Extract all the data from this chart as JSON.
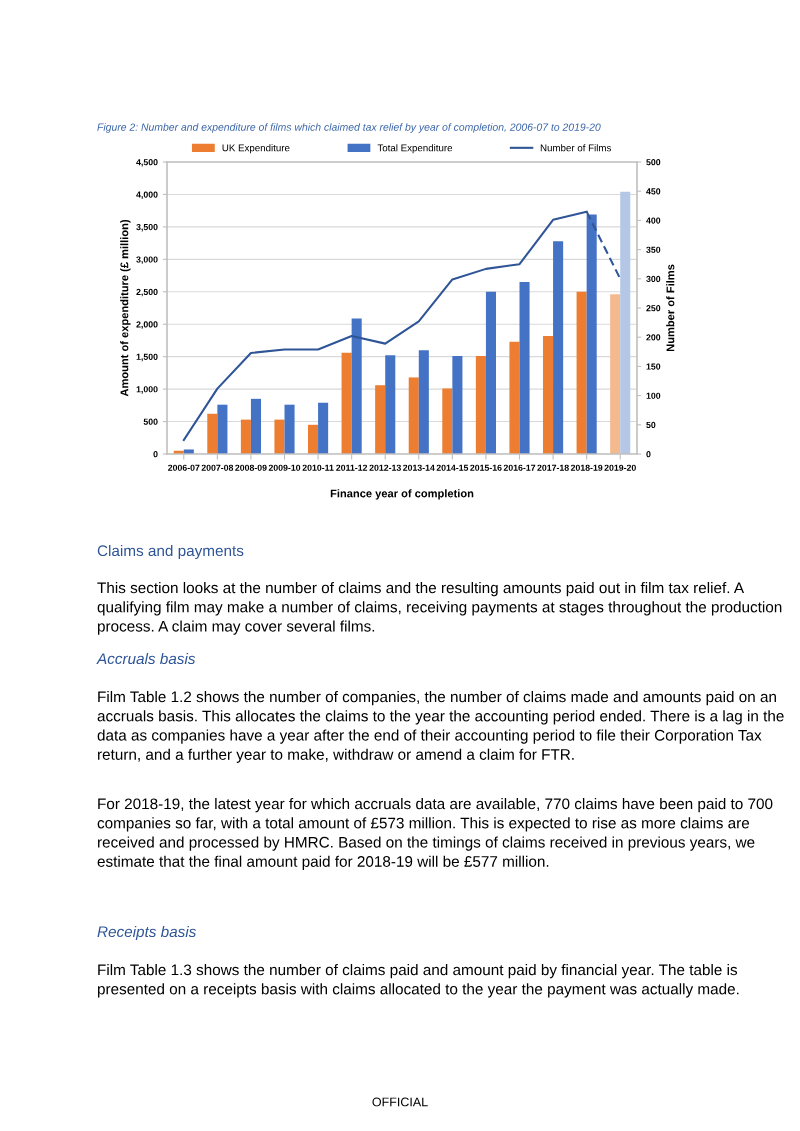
{
  "chart_data": {
    "type": "bar",
    "title": "Figure 2: Number and expenditure of films which claimed tax relief by year of completion, 2006-07 to 2019-20",
    "xlabel": "Finance year of completion",
    "ylabel": "Amount of expenditure (£ million)",
    "y2label": "Number of Films",
    "categories": [
      "2006-07",
      "2007-08",
      "2008-09",
      "2009-10",
      "2010-11",
      "2011-12",
      "2012-13",
      "2013-14",
      "2014-15",
      "2015-16",
      "2016-17",
      "2017-18",
      "2018-19",
      "2019-20"
    ],
    "series": [
      {
        "name": "UK Expenditure",
        "color": "#ed7d31",
        "colors": [
          "#ed7d31",
          "#ed7d31",
          "#ed7d31",
          "#ed7d31",
          "#ed7d31",
          "#ed7d31",
          "#ed7d31",
          "#ed7d31",
          "#ed7d31",
          "#ed7d31",
          "#ed7d31",
          "#ed7d31",
          "#ed7d31",
          "#f4b98e"
        ],
        "values": [
          50,
          620,
          530,
          530,
          450,
          1560,
          1060,
          1180,
          1010,
          1510,
          1730,
          1820,
          2500,
          2460
        ]
      },
      {
        "name": "Total Expenditure",
        "color": "#4472c4",
        "colors": [
          "#4472c4",
          "#4472c4",
          "#4472c4",
          "#4472c4",
          "#4472c4",
          "#4472c4",
          "#4472c4",
          "#4472c4",
          "#4472c4",
          "#4472c4",
          "#4472c4",
          "#4472c4",
          "#4472c4",
          "#b4c7e7"
        ],
        "values": [
          70,
          760,
          850,
          760,
          790,
          2090,
          1520,
          1600,
          1510,
          2500,
          2650,
          3280,
          3690,
          4040
        ]
      },
      {
        "name": "Number of Films",
        "type": "line",
        "axis": "y2",
        "color": "#2f5597",
        "line_style": "solid",
        "values": [
          24,
          112,
          173,
          179,
          179,
          202,
          189,
          227,
          299,
          317,
          325,
          401,
          415,
          null
        ]
      },
      {
        "type": "line",
        "axis": "y2",
        "color": "#2f5597",
        "line_style": "dashed",
        "values": [
          null,
          null,
          null,
          null,
          null,
          null,
          null,
          null,
          null,
          null,
          null,
          null,
          415,
          300
        ]
      }
    ],
    "ylim": [
      0,
      4500
    ],
    "yticks": [
      0,
      {
        "value": 500,
        "label": "500"
      },
      {
        "value": 1000,
        "label": "1,000"
      },
      {
        "value": 1500,
        "label": "1,500"
      },
      {
        "value": 2000,
        "label": "2,000"
      },
      {
        "value": 2500,
        "label": "2,500"
      },
      {
        "value": 3000,
        "label": "3,000"
      },
      {
        "value": 3500,
        "label": "3,500"
      },
      {
        "value": 4000,
        "label": "4,000"
      },
      {
        "value": 4500,
        "label": "4,500"
      }
    ],
    "y2lim": [
      0,
      500
    ],
    "y2ticks": [
      0,
      50,
      100,
      150,
      200,
      250,
      300,
      350,
      400,
      450,
      500
    ],
    "grid": "y",
    "legend": "top",
    "annotations": [
      "Claims and payments",
      "This section looks at the number of claims and the resulting amounts paid out in film tax relief. A qualifying film may make a number of claims, receiving payments at stages throughout the production process. A claim may cover several films.",
      "Accruals basis",
      "Film Table 1.2 shows the number of companies, the number of claims made and amounts paid on an accruals basis. This allocates the claims to the year the accounting period ended. There is a lag in the data as companies have a year after the end of their accounting period to file their Corporation Tax return, and a further year to make, withdraw or amend a claim for FTR.",
      "For 2018-19, the latest year for which accruals data are available, 770 claims have been paid to 700 companies so far, with a total amount of £573 million. This is expected to rise as more claims are received and processed by HMRC. Based on the timings of claims received in previous years, we estimate that the final amount paid for 2018-19 will be £577 million.",
      "Receipts basis",
      "Film Table 1.3 shows the number of claims paid and amount paid by financial year. The table is presented on a receipts basis with claims allocated to the year the payment was actually made.",
      "OFFICIAL"
    ]
  }
}
